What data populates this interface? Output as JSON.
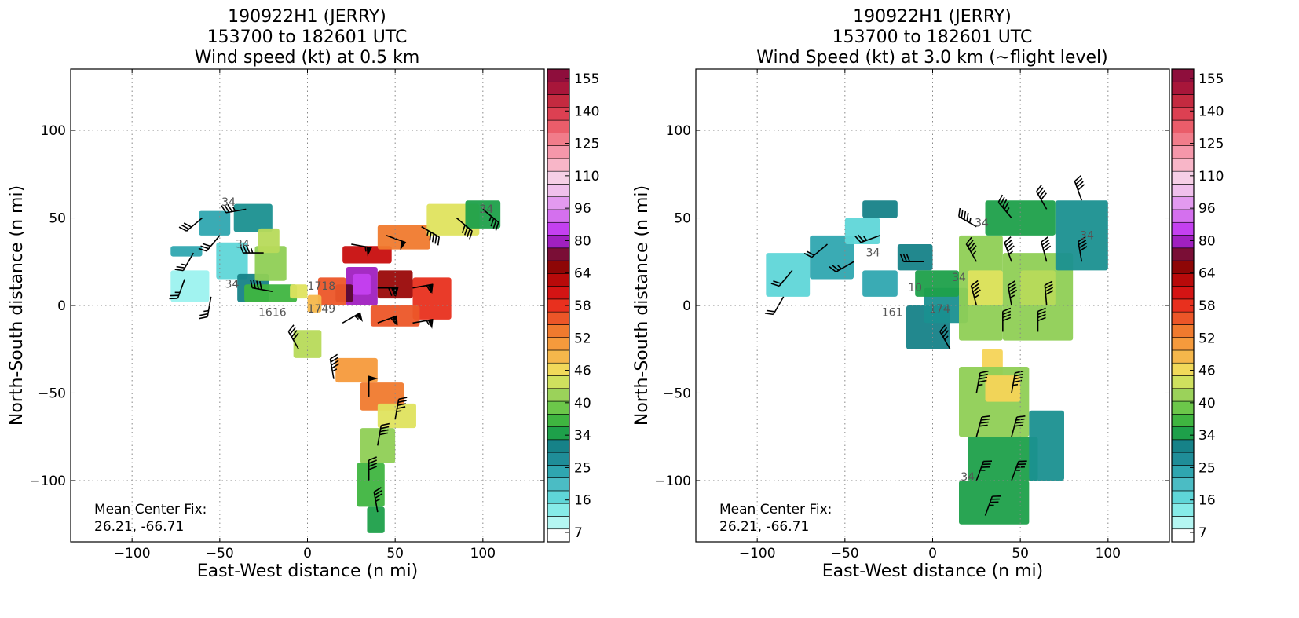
{
  "chart_data": [
    {
      "type": "heatmap",
      "title_lines": [
        "190922H1 (JERRY)",
        "153700 to 182601 UTC",
        "Wind speed (kt) at 0.5 km"
      ],
      "xlabel": "East-West distance (n mi)",
      "ylabel": "North-South distance (n mi)",
      "xlim": [
        -135,
        135
      ],
      "ylim": [
        -135,
        135
      ],
      "xticks": [
        -100,
        -50,
        0,
        50,
        100
      ],
      "yticks": [
        -100,
        -50,
        0,
        50,
        100
      ],
      "xtick_labels": [
        "−100",
        "−50",
        "0",
        "50",
        "100"
      ],
      "ytick_labels": [
        "−100",
        "−50",
        "0",
        "50",
        "100"
      ],
      "grid": true,
      "annotation": [
        "Mean Center Fix:",
        "26.21, -66.71"
      ],
      "colorbar_ticks": [
        "7",
        "16",
        "25",
        "34",
        "40",
        "46",
        "52",
        "58",
        "64",
        "80",
        "96",
        "110",
        "125",
        "140",
        "155"
      ],
      "center_fix_labels": [
        {
          "text": "1616",
          "x": -20,
          "y": -6
        },
        {
          "text": "1749",
          "x": 8,
          "y": -4
        },
        {
          "text": "1718",
          "x": 8,
          "y": 9
        }
      ],
      "contour_labels": [
        {
          "text": "34",
          "x": -45,
          "y": 57
        },
        {
          "text": "34",
          "x": -37,
          "y": 33
        },
        {
          "text": "34",
          "x": -43,
          "y": 10
        },
        {
          "text": "34",
          "x": 102,
          "y": 53
        }
      ],
      "regions": [
        {
          "name": "west-arc",
          "cells": [
            [
              -78,
              28,
              -60,
              34,
              22
            ],
            [
              -62,
              40,
              -44,
              54,
              23
            ],
            [
              -52,
              15,
              -34,
              36,
              21
            ],
            [
              -78,
              2,
              -56,
              20,
              13
            ],
            [
              -42,
              42,
              -20,
              58,
              30
            ],
            [
              -40,
              2,
              -22,
              18,
              26
            ]
          ]
        },
        {
          "name": "west-green",
          "cells": [
            [
              -30,
              14,
              -12,
              34,
              40
            ],
            [
              -36,
              2,
              -6,
              12,
              38
            ],
            [
              -10,
              4,
              0,
              12,
              44
            ],
            [
              -28,
              30,
              -16,
              44,
              42
            ]
          ]
        },
        {
          "name": "eye-core",
          "cells": [
            [
              22,
              0,
              40,
              22,
              80
            ],
            [
              26,
              6,
              36,
              18,
              95
            ],
            [
              16,
              2,
              26,
              12,
              66
            ],
            [
              40,
              4,
              60,
              20,
              60
            ],
            [
              60,
              -8,
              82,
              16,
              56
            ]
          ]
        },
        {
          "name": "north-band",
          "cells": [
            [
              20,
              24,
              48,
              34,
              58
            ],
            [
              40,
              32,
              70,
              46,
              52
            ],
            [
              68,
              40,
              98,
              58,
              44
            ],
            [
              90,
              44,
              110,
              60,
              34
            ]
          ]
        },
        {
          "name": "inner-ring",
          "cells": [
            [
              6,
              0,
              22,
              16,
              54
            ],
            [
              0,
              -4,
              8,
              6,
              48
            ],
            [
              36,
              -12,
              64,
              0,
              54
            ]
          ]
        },
        {
          "name": "south-band",
          "cells": [
            [
              16,
              -44,
              40,
              -30,
              50
            ],
            [
              30,
              -60,
              55,
              -44,
              52
            ],
            [
              40,
              -70,
              62,
              -56,
              44
            ],
            [
              30,
              -90,
              50,
              -70,
              40
            ],
            [
              28,
              -115,
              44,
              -90,
              38
            ],
            [
              34,
              -130,
              44,
              -115,
              36
            ]
          ]
        },
        {
          "name": "west-spot",
          "cells": [
            [
              -8,
              -30,
              8,
              -14,
              42
            ]
          ]
        }
      ],
      "barbs": [
        {
          "x": -60,
          "y": 50,
          "dir": 230,
          "kt": 30
        },
        {
          "x": -50,
          "y": 40,
          "dir": 220,
          "kt": 30
        },
        {
          "x": -65,
          "y": 30,
          "dir": 210,
          "kt": 25
        },
        {
          "x": -70,
          "y": 15,
          "dir": 200,
          "kt": 25
        },
        {
          "x": -55,
          "y": 5,
          "dir": 190,
          "kt": 25
        },
        {
          "x": -35,
          "y": 55,
          "dir": 260,
          "kt": 35
        },
        {
          "x": -25,
          "y": 30,
          "dir": 270,
          "kt": 35
        },
        {
          "x": -20,
          "y": 8,
          "dir": 280,
          "kt": 40
        },
        {
          "x": 25,
          "y": 35,
          "dir": 100,
          "kt": 55
        },
        {
          "x": 45,
          "y": 40,
          "dir": 110,
          "kt": 50
        },
        {
          "x": 65,
          "y": 45,
          "dir": 120,
          "kt": 45
        },
        {
          "x": 85,
          "y": 50,
          "dir": 130,
          "kt": 40
        },
        {
          "x": 100,
          "y": 55,
          "dir": 130,
          "kt": 35
        },
        {
          "x": 40,
          "y": 10,
          "dir": 90,
          "kt": 70
        },
        {
          "x": 60,
          "y": 10,
          "dir": 80,
          "kt": 60
        },
        {
          "x": 20,
          "y": -10,
          "dir": 60,
          "kt": 55
        },
        {
          "x": 40,
          "y": -10,
          "dir": 70,
          "kt": 60
        },
        {
          "x": 60,
          "y": -10,
          "dir": 80,
          "kt": 55
        },
        {
          "x": -5,
          "y": -25,
          "dir": 330,
          "kt": 40
        },
        {
          "x": 15,
          "y": -42,
          "dir": 350,
          "kt": 45
        },
        {
          "x": 35,
          "y": -52,
          "dir": 0,
          "kt": 50
        },
        {
          "x": 50,
          "y": -65,
          "dir": 10,
          "kt": 45
        },
        {
          "x": 40,
          "y": -80,
          "dir": 10,
          "kt": 40
        },
        {
          "x": 35,
          "y": -100,
          "dir": 0,
          "kt": 40
        },
        {
          "x": 40,
          "y": -118,
          "dir": 350,
          "kt": 35
        }
      ]
    },
    {
      "type": "heatmap",
      "title_lines": [
        "190922H1 (JERRY)",
        "153700 to 182601 UTC",
        "Wind Speed (kt) at 3.0 km (~flight level)"
      ],
      "xlabel": "East-West distance (n mi)",
      "ylabel": "North-South distance (n mi)",
      "xlim": [
        -135,
        135
      ],
      "ylim": [
        -135,
        135
      ],
      "xticks": [
        -100,
        -50,
        0,
        50,
        100
      ],
      "yticks": [
        -100,
        -50,
        0,
        50,
        100
      ],
      "xtick_labels": [
        "−100",
        "−50",
        "0",
        "50",
        "100"
      ],
      "ytick_labels": [
        "−100",
        "−50",
        "0",
        "50",
        "100"
      ],
      "grid": true,
      "annotation": [
        "Mean Center Fix:",
        "26.21, -66.71"
      ],
      "colorbar_ticks": [
        "7",
        "16",
        "25",
        "34",
        "40",
        "46",
        "52",
        "58",
        "64",
        "80",
        "96",
        "110",
        "125",
        "140",
        "155"
      ],
      "center_fix_labels": [
        {
          "text": "161",
          "x": -23,
          "y": -6
        },
        {
          "text": "174",
          "x": 4,
          "y": -4
        },
        {
          "text": "10",
          "x": -10,
          "y": 8
        }
      ],
      "contour_labels": [
        {
          "text": "34",
          "x": 28,
          "y": 45
        },
        {
          "text": "34",
          "x": -34,
          "y": 28
        },
        {
          "text": "34",
          "x": 15,
          "y": 14
        },
        {
          "text": "34",
          "x": 88,
          "y": 38
        },
        {
          "text": "34",
          "x": 20,
          "y": -100
        }
      ],
      "regions": [
        {
          "name": "west-teal",
          "cells": [
            [
              -95,
              5,
              -70,
              30,
              18
            ],
            [
              -70,
              15,
              -45,
              40,
              22
            ],
            [
              -50,
              35,
              -30,
              50,
              20
            ],
            [
              -40,
              50,
              -20,
              60,
              26
            ],
            [
              -20,
              20,
              0,
              35,
              26
            ],
            [
              -40,
              5,
              -20,
              20,
              24
            ]
          ]
        },
        {
          "name": "inner-teal",
          "cells": [
            [
              -15,
              -25,
              10,
              0,
              28
            ],
            [
              -5,
              -10,
              20,
              10,
              30
            ],
            [
              -10,
              5,
              15,
              20,
              34
            ]
          ]
        },
        {
          "name": "main-band",
          "cells": [
            [
              15,
              -20,
              40,
              40,
              40
            ],
            [
              40,
              -20,
              80,
              30,
              40
            ],
            [
              30,
              40,
              70,
              60,
              34
            ],
            [
              70,
              20,
              100,
              60,
              30
            ],
            [
              20,
              0,
              40,
              20,
              44
            ],
            [
              50,
              0,
              70,
              20,
              42
            ],
            [
              28,
              -40,
              40,
              -25,
              46
            ]
          ]
        },
        {
          "name": "south-lobe",
          "cells": [
            [
              15,
              -75,
              55,
              -35,
              40
            ],
            [
              20,
              -100,
              60,
              -75,
              36
            ],
            [
              15,
              -125,
              55,
              -100,
              34
            ],
            [
              55,
              -100,
              75,
              -60,
              30
            ],
            [
              30,
              -55,
              50,
              -40,
              46
            ]
          ]
        }
      ],
      "barbs": [
        {
          "x": -80,
          "y": 20,
          "dir": 220,
          "kt": 20
        },
        {
          "x": -60,
          "y": 35,
          "dir": 230,
          "kt": 20
        },
        {
          "x": -45,
          "y": 25,
          "dir": 240,
          "kt": 25
        },
        {
          "x": -30,
          "y": 40,
          "dir": 250,
          "kt": 25
        },
        {
          "x": -85,
          "y": 5,
          "dir": 210,
          "kt": 20
        },
        {
          "x": -5,
          "y": 25,
          "dir": 270,
          "kt": 30
        },
        {
          "x": 25,
          "y": 45,
          "dir": 300,
          "kt": 45
        },
        {
          "x": 45,
          "y": 50,
          "dir": 320,
          "kt": 45
        },
        {
          "x": 65,
          "y": 55,
          "dir": 330,
          "kt": 40
        },
        {
          "x": 85,
          "y": 60,
          "dir": 340,
          "kt": 40
        },
        {
          "x": 25,
          "y": 25,
          "dir": 330,
          "kt": 45
        },
        {
          "x": 45,
          "y": 25,
          "dir": 340,
          "kt": 45
        },
        {
          "x": 65,
          "y": 25,
          "dir": 345,
          "kt": 40
        },
        {
          "x": 85,
          "y": 25,
          "dir": 350,
          "kt": 40
        },
        {
          "x": 25,
          "y": 0,
          "dir": 345,
          "kt": 45
        },
        {
          "x": 45,
          "y": 0,
          "dir": 350,
          "kt": 45
        },
        {
          "x": 65,
          "y": 0,
          "dir": 355,
          "kt": 40
        },
        {
          "x": 10,
          "y": -25,
          "dir": 330,
          "kt": 35
        },
        {
          "x": 40,
          "y": -15,
          "dir": 0,
          "kt": 40
        },
        {
          "x": 60,
          "y": -15,
          "dir": 0,
          "kt": 40
        },
        {
          "x": 25,
          "y": -50,
          "dir": 10,
          "kt": 45
        },
        {
          "x": 45,
          "y": -50,
          "dir": 10,
          "kt": 45
        },
        {
          "x": 25,
          "y": -75,
          "dir": 15,
          "kt": 40
        },
        {
          "x": 45,
          "y": -75,
          "dir": 15,
          "kt": 40
        },
        {
          "x": 25,
          "y": -100,
          "dir": 20,
          "kt": 35
        },
        {
          "x": 45,
          "y": -100,
          "dir": 20,
          "kt": 35
        },
        {
          "x": 30,
          "y": -120,
          "dir": 20,
          "kt": 35
        }
      ]
    }
  ]
}
